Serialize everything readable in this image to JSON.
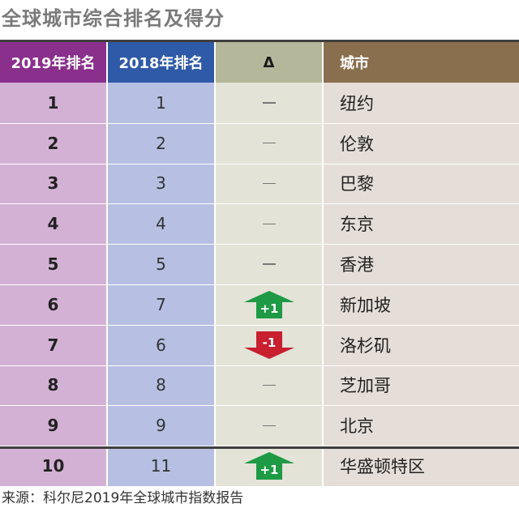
{
  "title": "全球城市综合排名及得分",
  "source": "来源：科尔尼2019年全球城市指数报告",
  "colors": {
    "header_2019": "#8a2f8c",
    "header_2018": "#2f5aa7",
    "header_delta": "#b5b79b",
    "header_city": "#8a6f4e",
    "col_2019": "#d3b1d5",
    "col_2018": "#b7c0e3",
    "col_delta": "#e3e3d8",
    "col_city": "#e5ded8",
    "up": "#1e9a45",
    "down": "#c8202f"
  },
  "chart_data": {
    "type": "table",
    "title": "全球城市综合排名及得分",
    "columns": [
      "2019年排名",
      "2018年排名",
      "Δ",
      "城市"
    ],
    "rows": [
      {
        "rank2019": "1",
        "rank2018": "1",
        "change": "—",
        "city": "纽约"
      },
      {
        "rank2019": "2",
        "rank2018": "2",
        "change": "—",
        "city": "伦敦"
      },
      {
        "rank2019": "3",
        "rank2018": "3",
        "change": "—",
        "city": "巴黎"
      },
      {
        "rank2019": "4",
        "rank2018": "4",
        "change": "—",
        "city": "东京"
      },
      {
        "rank2019": "5",
        "rank2018": "5",
        "change": "—",
        "city": "香港"
      },
      {
        "rank2019": "6",
        "rank2018": "7",
        "change": "+1",
        "city": "新加坡"
      },
      {
        "rank2019": "7",
        "rank2018": "6",
        "change": "-1",
        "city": "洛杉矶"
      },
      {
        "rank2019": "8",
        "rank2018": "8",
        "change": "—",
        "city": "芝加哥"
      },
      {
        "rank2019": "9",
        "rank2018": "9",
        "change": "—",
        "city": "北京"
      },
      {
        "rank2019": "10",
        "rank2018": "11",
        "change": "+1",
        "city": "华盛顿特区"
      }
    ]
  }
}
